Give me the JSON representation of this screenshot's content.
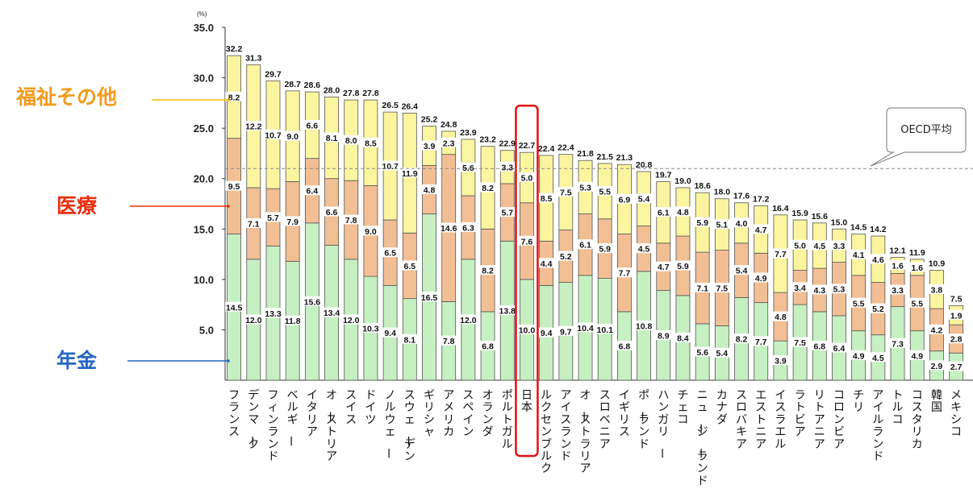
{
  "chart_data": {
    "type": "bar",
    "stacked": true,
    "unit_label": "(%)",
    "ylim": [
      0,
      35
    ],
    "yticks": [
      "35.0",
      "30.0",
      "25.0",
      "20.0",
      "15.0",
      "10.0",
      "5.0"
    ],
    "categories": [
      "フランス",
      "デンマーク",
      "フィンランド",
      "ベルギー",
      "イタリア",
      "オーストリア",
      "スイス",
      "ドイツ",
      "ノルウェー",
      "スウェーデン",
      "ギリシャ",
      "アメリカ",
      "スペイン",
      "オランダ",
      "ポルトガル",
      "日本",
      "ルクセンブルク",
      "アイスランド",
      "オーストラリア",
      "スロベニア",
      "イギリス",
      "ポーランド",
      "ハンガリー",
      "チェコ",
      "ニュージーランド",
      "カナダ",
      "スロバキア",
      "エストニア",
      "イスラエル",
      "ラトビア",
      "リトアニア",
      "コロンビア",
      "チリ",
      "アイルランド",
      "トルコ",
      "コスタリカ",
      "韓国",
      "メキシコ"
    ],
    "series": [
      {
        "name": "年金",
        "color": "#c6f0c2",
        "values": [
          14.5,
          12.0,
          13.3,
          11.8,
          15.6,
          13.4,
          12.0,
          10.3,
          9.4,
          8.1,
          16.5,
          7.8,
          12.0,
          6.8,
          13.8,
          10.0,
          9.4,
          9.7,
          10.4,
          10.1,
          6.8,
          10.8,
          8.9,
          8.4,
          5.6,
          5.4,
          8.2,
          7.7,
          3.9,
          7.5,
          6.8,
          6.4,
          4.9,
          4.5,
          7.3,
          4.9,
          2.9,
          2.7
        ]
      },
      {
        "name": "医療",
        "color": "#f2bf94",
        "values": [
          9.5,
          7.1,
          5.7,
          7.9,
          6.4,
          6.6,
          7.8,
          9.0,
          6.5,
          6.5,
          4.8,
          14.6,
          6.3,
          8.2,
          5.7,
          7.6,
          4.4,
          5.2,
          6.1,
          5.9,
          7.7,
          4.5,
          4.7,
          5.9,
          7.1,
          7.5,
          5.4,
          4.9,
          4.8,
          3.4,
          4.3,
          5.3,
          5.5,
          5.2,
          3.3,
          5.5,
          4.2,
          2.8
        ]
      },
      {
        "name": "福祉その他",
        "color": "#fbf5a0",
        "values": [
          8.2,
          12.2,
          10.7,
          9.0,
          6.6,
          8.1,
          8.0,
          8.5,
          10.7,
          11.9,
          3.9,
          2.3,
          5.6,
          8.2,
          3.3,
          5.0,
          8.5,
          7.5,
          5.3,
          5.5,
          6.9,
          5.4,
          6.1,
          4.8,
          5.9,
          5.1,
          4.0,
          4.7,
          7.7,
          5.0,
          4.5,
          3.3,
          4.1,
          4.6,
          1.6,
          1.6,
          3.8,
          1.9
        ]
      }
    ],
    "totals": [
      32.2,
      31.3,
      29.7,
      28.7,
      28.6,
      28.0,
      27.8,
      27.8,
      26.5,
      26.4,
      25.2,
      24.8,
      23.9,
      23.2,
      22.9,
      22.7,
      22.4,
      22.4,
      21.8,
      21.5,
      21.3,
      20.8,
      19.7,
      19.0,
      18.6,
      18.0,
      17.6,
      17.2,
      16.4,
      15.9,
      15.6,
      15.0,
      14.5,
      14.2,
      12.1,
      11.9,
      10.9,
      7.5
    ],
    "reference_line": {
      "label": "OECD平均",
      "value": 21.0
    },
    "highlight_category": "日本"
  }
}
